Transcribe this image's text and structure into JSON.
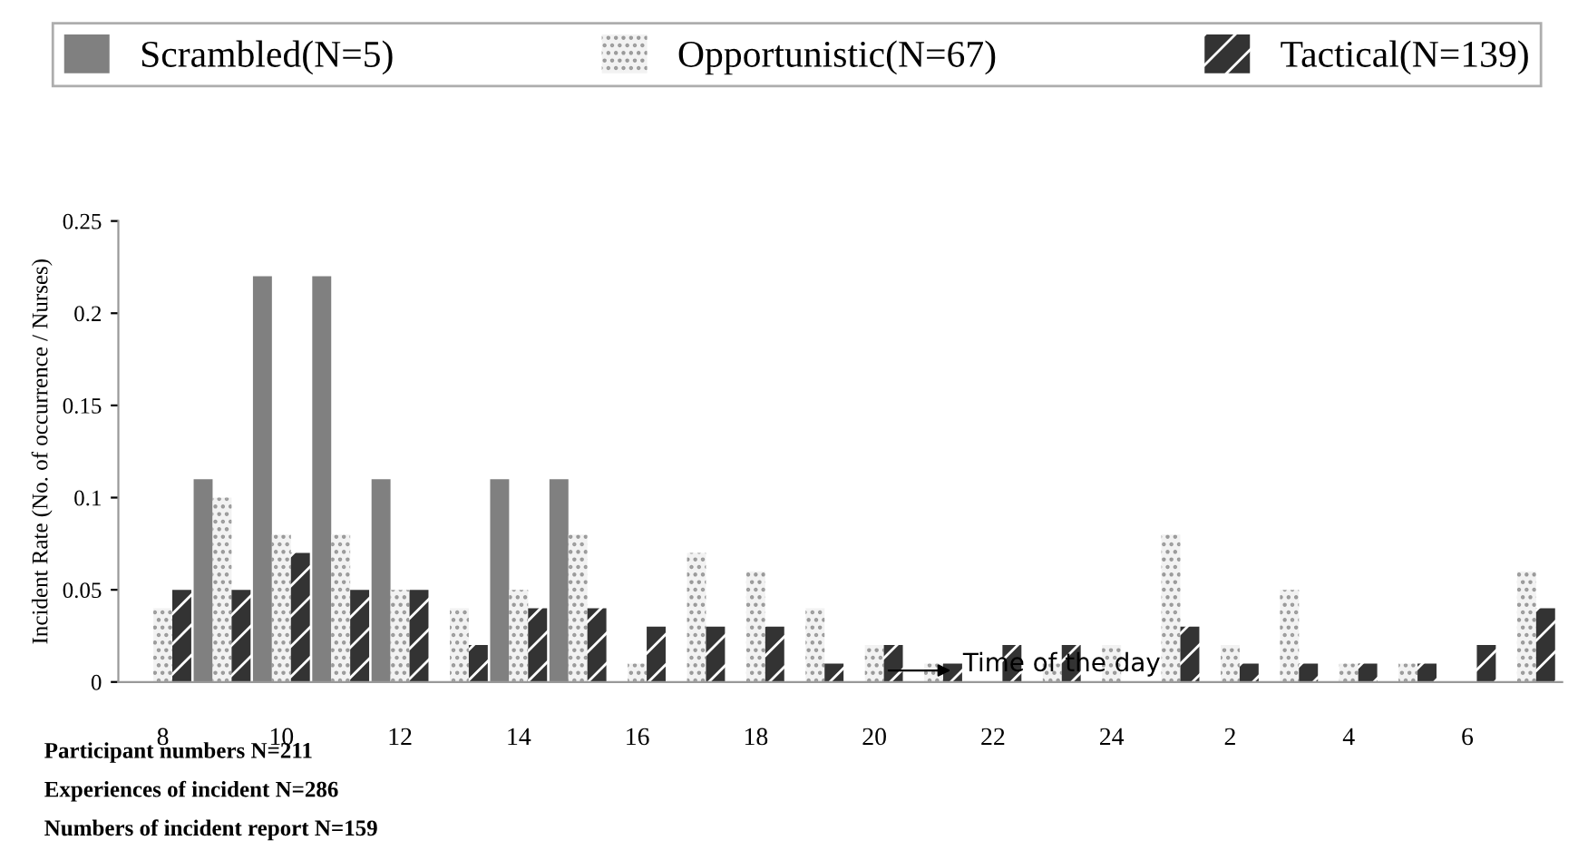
{
  "chart_data": {
    "type": "bar",
    "ylabel": "Incident Rate (No. of occurrence / Nurses)",
    "categories": [
      "8",
      null,
      "10",
      null,
      "12",
      null,
      "14",
      null,
      "16",
      null,
      "18",
      null,
      "20",
      null,
      "22",
      null,
      "24",
      null,
      "2",
      null,
      "4",
      null,
      "6",
      null
    ],
    "series": [
      {
        "name": "Scrambled(N=5)",
        "color": "#808080",
        "values": [
          0,
          0.11,
          0.22,
          0.22,
          0.11,
          0,
          0.11,
          0.11,
          0,
          0,
          0,
          0,
          0,
          0,
          0,
          0,
          0,
          0,
          0,
          0,
          0,
          0,
          0,
          0
        ]
      },
      {
        "name": "Opportunistic(N=67)",
        "color": "#f2f2f2",
        "values": [
          0.04,
          0.1,
          0.08,
          0.08,
          0.05,
          0.04,
          0.05,
          0.08,
          0.01,
          0.07,
          0.06,
          0.04,
          0.02,
          0.01,
          0,
          0.01,
          0.02,
          0.08,
          0.02,
          0.05,
          0.01,
          0.01,
          0,
          0.06
        ]
      },
      {
        "name": "Tactical(N=139)",
        "color": "#333333",
        "values": [
          0.05,
          0.05,
          0.07,
          0.05,
          0.05,
          0.02,
          0.04,
          0.04,
          0.03,
          0.03,
          0.03,
          0.01,
          0.02,
          0.01,
          0.02,
          0.02,
          0,
          0.03,
          0.01,
          0.01,
          0.01,
          0.01,
          0.02,
          0.04
        ]
      }
    ],
    "ylim": [
      0,
      0.25
    ],
    "yticks": [
      0,
      0.05,
      0.1,
      0.15,
      0.2,
      0.25
    ],
    "grid": false,
    "legend": "top",
    "annotations": [
      "Time of the day",
      "Participant numbers N=211",
      "Experiences of incident N=286",
      "Numbers of incident report N=159"
    ]
  }
}
